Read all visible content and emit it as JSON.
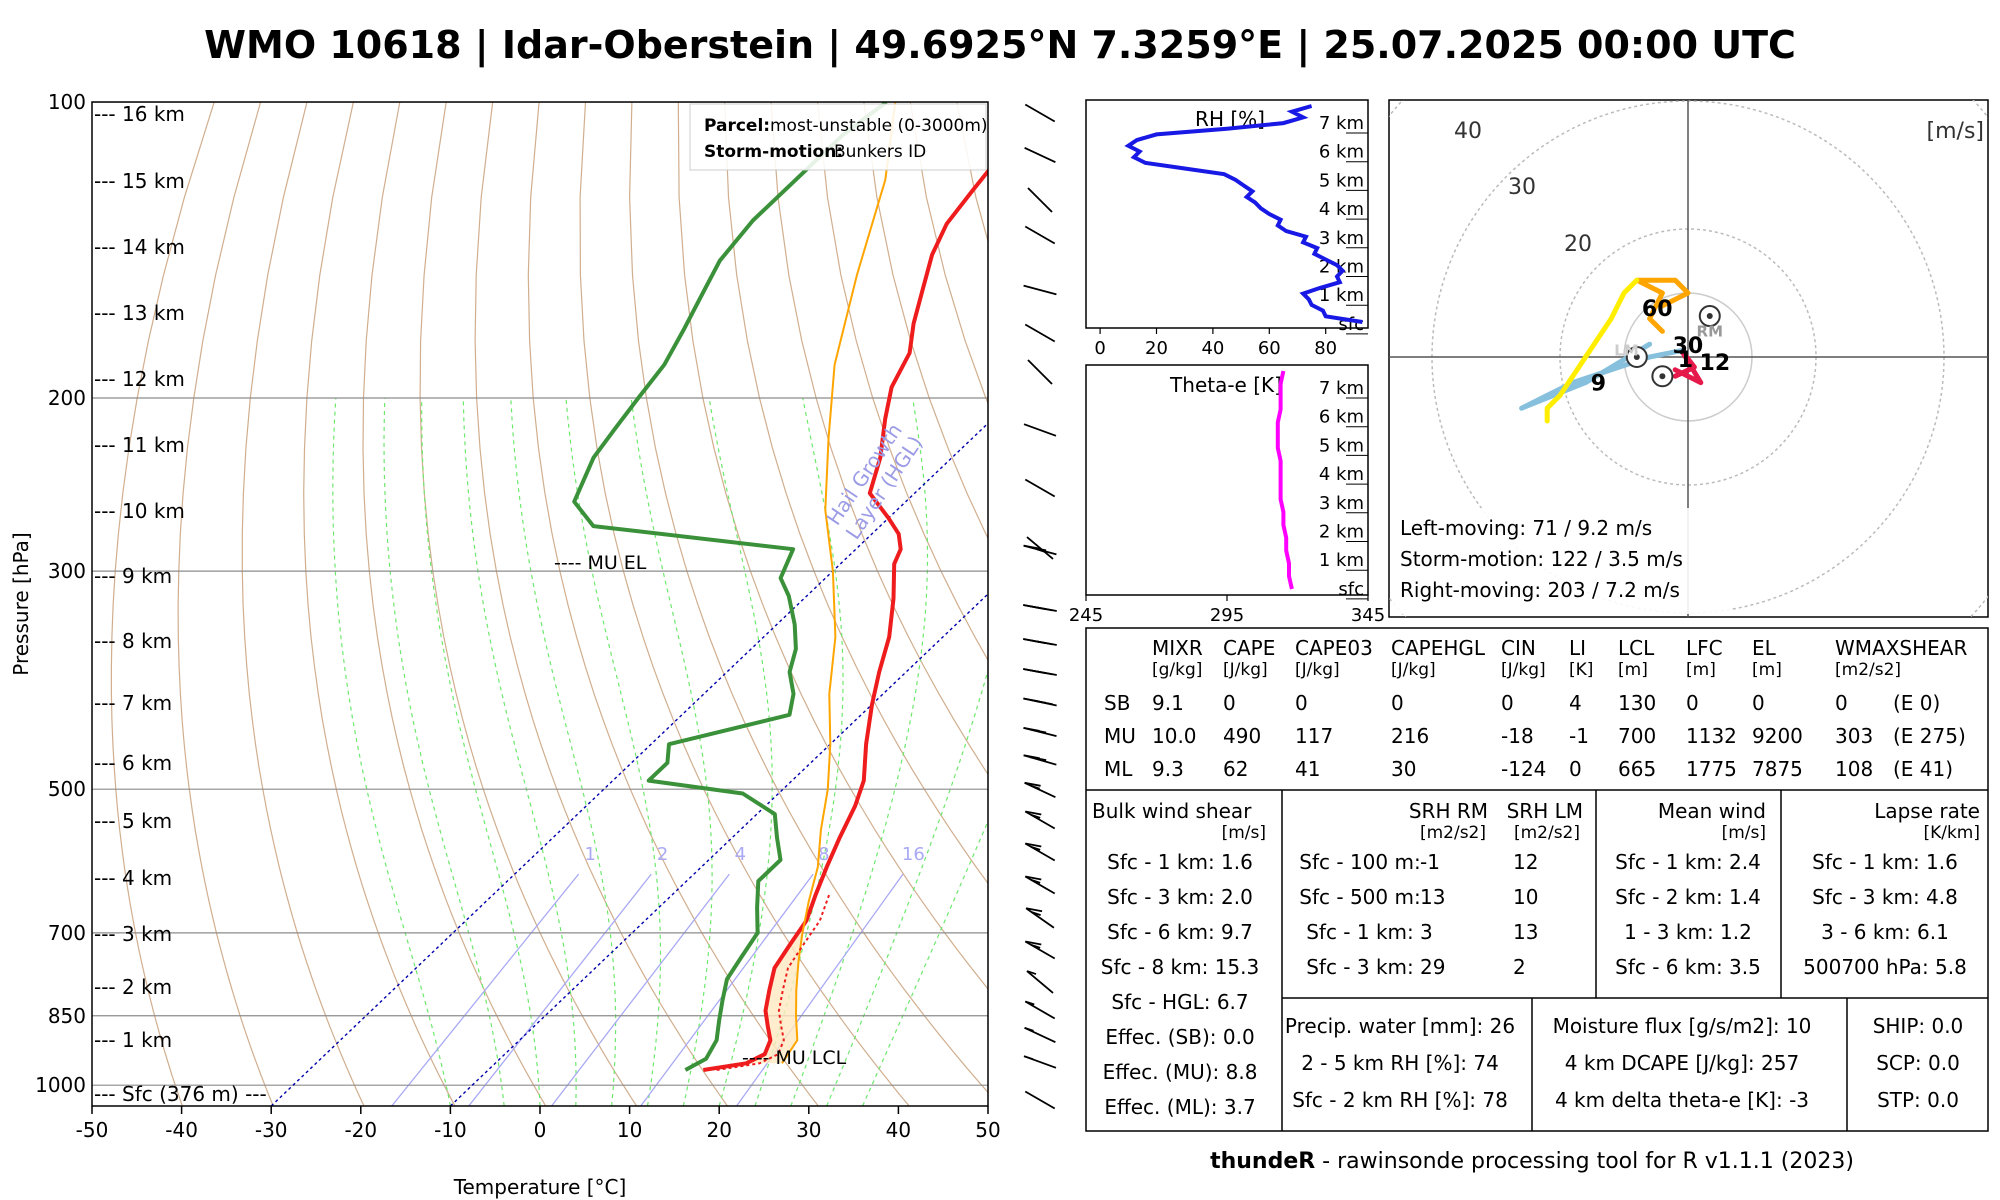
{
  "title": "WMO 10618 | Idar-Oberstein | 49.6925°N 7.3259°E | 25.07.2025 00:00 UTC",
  "footer": {
    "bold": "thundeR",
    "rest": " - rawinsonde processing tool for R v1.1.1 (2023)"
  },
  "colors": {
    "temperature": "#ee1c1c",
    "dewpoint": "#3a913a",
    "parcel": "#ffa500",
    "rh": "#1919e6",
    "thetae": "#ff00ff",
    "hgl": "#0000aa",
    "dry_adiabat": "#c9a07a",
    "moist_adiabat": "#6de86d",
    "mixing_ratio": "#a9a9f5"
  },
  "skewt": {
    "xlabel": "Temperature [°C]",
    "ylabel": "Pressure [hPa]",
    "x_ticks": [
      "-50",
      "-40",
      "-30",
      "-20",
      "-10",
      "0",
      "10",
      "20",
      "30",
      "40",
      "50"
    ],
    "p_ticks": [
      "100",
      "200",
      "300",
      "500",
      "700",
      "850",
      "1000"
    ],
    "height_labels": [
      "--- 16 km",
      "--- 15 km",
      "--- 14 km",
      "--- 13 km",
      "--- 12 km",
      "--- 11 km",
      "--- 10 km",
      "--- 9 km",
      "--- 8 km",
      "--- 7 km",
      "--- 6 km",
      "--- 5 km",
      "--- 4 km",
      "--- 3 km",
      "--- 2 km",
      "--- 1 km",
      "--- Sfc (376 m) ---"
    ],
    "mixing_ratio_labels": [
      "1",
      "2",
      "4",
      "8",
      "16"
    ],
    "el_label": "---- MU EL",
    "lcl_label": "---- MU LCL",
    "hgl_label_1": "Hail Growth",
    "hgl_label_2": "Layer (HGL)",
    "legend": {
      "parcel_key": "Parcel:",
      "parcel_value": "most-unstable (0-3000m)",
      "storm_key": "Storm-motion:",
      "storm_value": "Bunkers ID"
    }
  },
  "rh_panel": {
    "title": "RH [%]",
    "x_ticks": [
      "0",
      "20",
      "40",
      "60",
      "80"
    ],
    "height_labels": [
      "7 km",
      "6 km",
      "5 km",
      "4 km",
      "3 km",
      "2 km",
      "1 km",
      "sfc"
    ]
  },
  "thetae_panel": {
    "title": "Theta-e [K]",
    "x_ticks": [
      "245",
      "295",
      "345"
    ],
    "height_labels": [
      "7 km",
      "6 km",
      "5 km",
      "4 km",
      "3 km",
      "2 km",
      "1 km",
      "sfc"
    ]
  },
  "hodograph": {
    "unit": "[m/s]",
    "ring_labels": [
      "40",
      "30",
      "20"
    ],
    "point_labels": [
      "60",
      "30",
      "1",
      "12",
      "9"
    ],
    "rm_label": "RM",
    "lm_label": "LM",
    "left_moving": "Left-moving: 71 / 9.2 m/s",
    "storm_motion": "Storm-motion: 122 / 3.5 m/s",
    "right_moving": "Right-moving: 203 / 7.2 m/s"
  },
  "params": {
    "headers": [
      "MIXR",
      "CAPE",
      "CAPE03",
      "CAPEHGL",
      "CIN",
      "LI",
      "LCL",
      "LFC",
      "EL",
      "WMAXSHEAR"
    ],
    "units": [
      "[g/kg]",
      "[J/kg]",
      "[J/kg]",
      "[J/kg]",
      "[J/kg]",
      "[K]",
      "[m]",
      "[m]",
      "[m]",
      "[m2/s2]"
    ],
    "rows": [
      {
        "label": "SB",
        "values": [
          "9.1",
          "0",
          "0",
          "0",
          "0",
          "4",
          "130",
          "0",
          "0",
          "0",
          "(E 0)"
        ]
      },
      {
        "label": "MU",
        "values": [
          "10.0",
          "490",
          "117",
          "216",
          "-18",
          "-1",
          "700",
          "1132",
          "9200",
          "303",
          "(E 275)"
        ]
      },
      {
        "label": "ML",
        "values": [
          "9.3",
          "62",
          "41",
          "30",
          "-124",
          "0",
          "665",
          "1775",
          "7875",
          "108",
          "(E 41)"
        ]
      }
    ]
  },
  "bulk_shear": {
    "title": "Bulk wind shear",
    "unit": "[m/s]",
    "rows": [
      "Sfc - 1 km: 1.6",
      "Sfc - 3 km: 2.0",
      "Sfc - 6 km: 9.7",
      "Sfc - 8 km: 15.3",
      "Sfc - HGL: 6.7",
      "Effec. (SB): 0.0",
      "Effec. (MU): 8.8",
      "Effec. (ML): 3.7"
    ]
  },
  "srh": {
    "head_rm": "SRH RM",
    "head_lm": "SRH LM",
    "unit_rm": "[m2/s2]",
    "unit_lm": "[m2/s2]",
    "rows": [
      {
        "label": "Sfc - 100 m:",
        "rm": "-1",
        "lm": "12"
      },
      {
        "label": "Sfc - 500 m:",
        "rm": "13",
        "lm": "10"
      },
      {
        "label": "Sfc - 1 km:",
        "rm": "3",
        "lm": "13"
      },
      {
        "label": "Sfc - 3 km:",
        "rm": "29",
        "lm": "2"
      }
    ]
  },
  "mean_wind": {
    "title": "Mean wind",
    "unit": "[m/s]",
    "rows": [
      "Sfc - 1 km: 2.4",
      "Sfc - 2 km: 1.4",
      "1 - 3 km: 1.2",
      "Sfc - 6 km: 3.5"
    ]
  },
  "lapse_rate": {
    "title": "Lapse rate",
    "unit": "[K/km]",
    "rows": [
      "Sfc - 1 km: 1.6",
      "Sfc - 3 km: 4.8",
      "3 - 6 km: 6.1",
      "500700 hPa: 5.8"
    ]
  },
  "moisture": {
    "left": [
      "Precip. water [mm]: 26",
      "2 - 5 km RH [%]: 74",
      "Sfc - 2 km RH [%]: 78"
    ],
    "mid": [
      "Moisture flux [g/s/m2]: 10",
      "4 km DCAPE [J/kg]: 257",
      "4 km delta theta-e [K]: -3"
    ],
    "right": [
      "SHIP: 0.0",
      "SCP: 0.0",
      "STP: 0.0"
    ]
  },
  "chart_data": [
    {
      "type": "line",
      "title": "",
      "xlabel": "Temperature [°C]",
      "ylabel": "Pressure [hPa]",
      "xlim": [
        -50,
        50
      ],
      "ylim": [
        1000,
        100
      ],
      "y_scale": "log",
      "grid": true,
      "series": [
        {
          "name": "",
          "role": "temperature",
          "points": [
            [
              14,
              965
            ],
            [
              18,
              950
            ],
            [
              19,
              930
            ],
            [
              18,
              900
            ],
            [
              16,
              870
            ],
            [
              14,
              840
            ],
            [
              12,
              800
            ],
            [
              10,
              760
            ],
            [
              9,
              720
            ],
            [
              8,
              680
            ],
            [
              6,
              640
            ],
            [
              4,
              600
            ],
            [
              2,
              560
            ],
            [
              0,
              520
            ],
            [
              -2,
              490
            ],
            [
              -6,
              450
            ],
            [
              -10,
              410
            ],
            [
              -13,
              380
            ],
            [
              -16,
              350
            ],
            [
              -20,
              320
            ],
            [
              -24,
              295
            ],
            [
              -25,
              285
            ],
            [
              -27,
              275
            ],
            [
              -30,
              265
            ],
            [
              -35,
              250
            ],
            [
              -38,
              230
            ],
            [
              -42,
              210
            ],
            [
              -45,
              195
            ],
            [
              -47,
              180
            ],
            [
              -50,
              168
            ],
            [
              -53,
              155
            ],
            [
              -56,
              143
            ],
            [
              -58,
              133
            ],
            [
              -59,
              123
            ],
            [
              -60,
              113
            ],
            [
              -61,
              103
            ]
          ]
        },
        {
          "name": "",
          "role": "dewpoint",
          "points": [
            [
              12,
              965
            ],
            [
              13,
              940
            ],
            [
              12,
              900
            ],
            [
              10,
              860
            ],
            [
              8,
              820
            ],
            [
              6,
              780
            ],
            [
              5,
              740
            ],
            [
              4,
              700
            ],
            [
              1,
              660
            ],
            [
              -2,
              620
            ],
            [
              -2,
              590
            ],
            [
              -5,
              560
            ],
            [
              -8,
              530
            ],
            [
              -14,
              505
            ],
            [
              -26,
              490
            ],
            [
              -26,
              470
            ],
            [
              -28,
              450
            ],
            [
              -18,
              420
            ],
            [
              -20,
              400
            ],
            [
              -23,
              380
            ],
            [
              -25,
              360
            ],
            [
              -28,
              340
            ],
            [
              -32,
              318
            ],
            [
              -35,
              305
            ],
            [
              -37,
              285
            ],
            [
              -62,
              270
            ],
            [
              -67,
              255
            ],
            [
              -70,
              230
            ],
            [
              -71,
              215
            ],
            [
              -72,
              200
            ],
            [
              -73,
              185
            ],
            [
              -75,
              170
            ],
            [
              -77,
              157
            ],
            [
              -79,
              145
            ],
            [
              -80,
              132
            ],
            [
              -80,
              120
            ],
            [
              -80,
              108
            ],
            [
              -79,
              100
            ]
          ]
        },
        {
          "name": "",
          "role": "parcel",
          "points": [
            [
              22,
              950
            ],
            [
              21,
              900
            ],
            [
              18,
              850
            ],
            [
              15,
              800
            ],
            [
              12,
              750
            ],
            [
              9,
              700
            ],
            [
              6,
              650
            ],
            [
              3,
              600
            ],
            [
              -1,
              550
            ],
            [
              -5,
              500
            ],
            [
              -10,
              450
            ],
            [
              -16,
              400
            ],
            [
              -22,
              350
            ],
            [
              -30,
              300
            ],
            [
              -38,
              260
            ],
            [
              -46,
              220
            ],
            [
              -54,
              185
            ],
            [
              -62,
              150
            ],
            [
              -70,
              120
            ],
            [
              -78,
              100
            ]
          ]
        }
      ]
    },
    {
      "type": "line",
      "title": "RH [%]",
      "xlim": [
        -5,
        95
      ],
      "ylim": [
        0,
        7.3
      ],
      "series": [
        {
          "name": "",
          "values_x": [
            93,
            80,
            79,
            75,
            74,
            72,
            78,
            85,
            84,
            86,
            84,
            80,
            76,
            77,
            72,
            73,
            66,
            63,
            64,
            60,
            57,
            55,
            52,
            54,
            51,
            48,
            44,
            30,
            16,
            12,
            14,
            10,
            13,
            20,
            45,
            65,
            72,
            68,
            75
          ]
        }
      ]
    },
    {
      "type": "line",
      "title": "Theta-e [K]",
      "xlim": [
        245,
        345
      ],
      "ylim": [
        0,
        7.3
      ],
      "series": [
        {
          "name": "",
          "values_x": [
            318,
            317,
            317,
            316,
            316,
            315,
            315,
            314,
            314,
            314,
            314,
            313,
            313,
            313,
            314,
            314,
            314,
            315
          ]
        }
      ]
    },
    {
      "type": "line",
      "title": "",
      "unit": "[m/s]",
      "xlim": [
        -45,
        45
      ],
      "ylim": [
        -45,
        45
      ],
      "series": [
        {
          "name": "",
          "points": [
            [
              -2,
              0
            ],
            [
              -1,
              -1
            ],
            [
              -2,
              -2
            ],
            [
              0,
              1
            ],
            [
              -2,
              3
            ],
            [
              -5,
              2
            ],
            [
              -9,
              -1
            ],
            [
              -12,
              -3
            ]
          ]
        }
      ],
      "storm_motions": {
        "RM": [
          4,
          7.5
        ],
        "LM": [
          -7,
          3
        ],
        "mean": [
          -3,
          -4
        ]
      }
    }
  ]
}
